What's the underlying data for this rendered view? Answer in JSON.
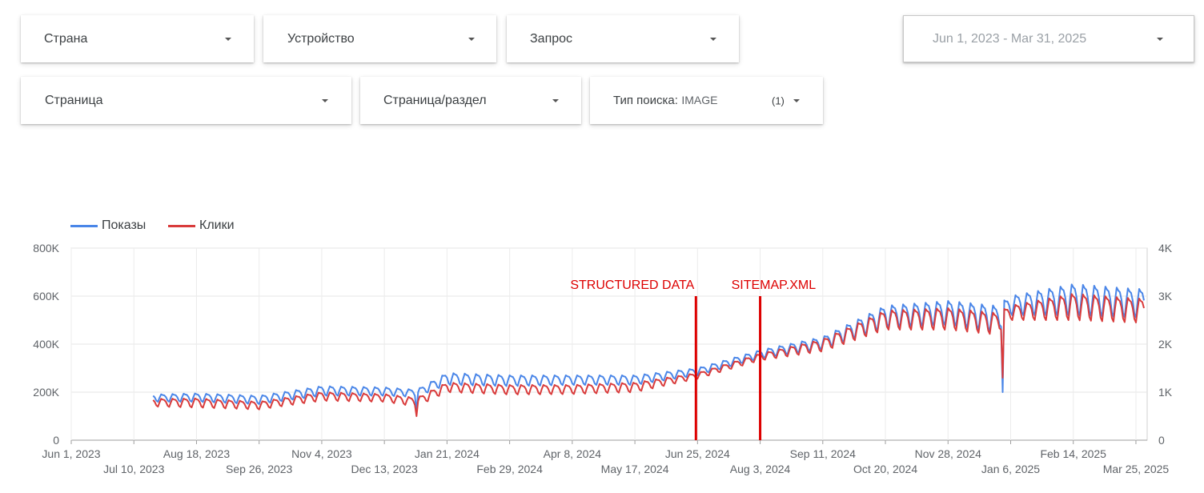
{
  "filters": {
    "country": {
      "label": "Страна"
    },
    "device": {
      "label": "Устройство"
    },
    "query": {
      "label": "Запрос"
    },
    "date_range": {
      "label": "Jun 1, 2023 - Mar 31, 2025"
    },
    "page": {
      "label": "Страница"
    },
    "page_section": {
      "label": "Страница/раздел"
    },
    "search_type": {
      "label": "Тип поиска:",
      "value": "IMAGE",
      "count": "(1)"
    }
  },
  "chart_data": {
    "type": "line",
    "series": [
      {
        "name": "Показы",
        "color": "#4a86e8",
        "axis": "left"
      },
      {
        "name": "Клики",
        "color": "#d93b3b",
        "axis": "right"
      }
    ],
    "x_start": "Jul 22, 2023",
    "x_end": "Mar 30, 2025",
    "weekly_points": [
      {
        "week_of": "Jul 22, 2023",
        "impressions": [
          190000,
          160000
        ],
        "clicks": [
          860,
          700
        ]
      },
      {
        "week_of": "Aug 18, 2023",
        "impressions": [
          195000,
          160000
        ],
        "clicks": [
          870,
          680
        ]
      },
      {
        "week_of": "Sep 26, 2023",
        "impressions": [
          185000,
          150000
        ],
        "clicks": [
          800,
          640
        ]
      },
      {
        "week_of": "Nov 4, 2023",
        "impressions": [
          225000,
          185000
        ],
        "clicks": [
          1000,
          820
        ]
      },
      {
        "week_of": "Dec 13, 2023",
        "impressions": [
          220000,
          185000
        ],
        "clicks": [
          960,
          800
        ]
      },
      {
        "week_of": "Jan 2, 2024",
        "impressions": [
          210000,
          180000
        ],
        "clicks": [
          880,
          700
        ]
      },
      {
        "week_of": "Jan 21, 2024",
        "impressions": [
          280000,
          230000
        ],
        "clicks": [
          1200,
          1000
        ]
      },
      {
        "week_of": "Feb 29, 2024",
        "impressions": [
          270000,
          225000
        ],
        "clicks": [
          1150,
          950
        ]
      },
      {
        "week_of": "Apr 8, 2024",
        "impressions": [
          270000,
          230000
        ],
        "clicks": [
          1150,
          960
        ]
      },
      {
        "week_of": "May 17, 2024",
        "impressions": [
          270000,
          230000
        ],
        "clicks": [
          1200,
          1000
        ]
      },
      {
        "week_of": "Jun 25, 2024",
        "impressions": [
          300000,
          270000
        ],
        "clicks": [
          1400,
          1280
        ]
      },
      {
        "week_of": "Aug 3, 2024",
        "impressions": [
          375000,
          340000
        ],
        "clicks": [
          1800,
          1660
        ]
      },
      {
        "week_of": "Sep 11, 2024",
        "impressions": [
          430000,
          380000
        ],
        "clicks": [
          2100,
          1850
        ]
      },
      {
        "week_of": "Oct 20, 2024",
        "impressions": [
          560000,
          470000
        ],
        "clicks": [
          2700,
          2300
        ]
      },
      {
        "week_of": "Nov 28, 2024",
        "impressions": [
          580000,
          480000
        ],
        "clicks": [
          2750,
          2300
        ]
      },
      {
        "week_of": "Dec 28, 2024",
        "impressions": [
          560000,
          450000
        ],
        "clicks": [
          2650,
          2200
        ]
      },
      {
        "week_of": "Jan 6, 2025",
        "impressions": [
          600000,
          520000
        ],
        "clicks": [
          2800,
          2500
        ]
      },
      {
        "week_of": "Feb 14, 2025",
        "impressions": [
          650000,
          520000
        ],
        "clicks": [
          3050,
          2500
        ]
      },
      {
        "week_of": "Mar 25, 2025",
        "impressions": [
          630000,
          510000
        ],
        "clicks": [
          2950,
          2450
        ]
      }
    ],
    "dips": [
      {
        "date": "Jan 2, 2024",
        "impressions": 120000,
        "clicks": 500
      },
      {
        "date": "Jan 1, 2025",
        "impressions": 200000,
        "clicks": 1300
      }
    ],
    "left_axis": {
      "min": 0,
      "max": 800000,
      "ticks": [
        "0",
        "200K",
        "400K",
        "600K",
        "800K"
      ]
    },
    "right_axis": {
      "min": 0,
      "max": 4000,
      "ticks": [
        "0",
        "1K",
        "2K",
        "3K",
        "4K"
      ]
    },
    "x_axis": {
      "start": "Jun 1, 2023",
      "end": "Apr 1, 2025",
      "labels_upper": [
        "Jun 1, 2023",
        "Aug 18, 2023",
        "Nov 4, 2023",
        "Jan 21, 2024",
        "Apr 8, 2024",
        "Jun 25, 2024",
        "Sep 11, 2024",
        "Nov 28, 2024",
        "Feb 14, 2025"
      ],
      "labels_lower": [
        "Jul 10, 2023",
        "Sep 26, 2023",
        "Dec 13, 2023",
        "Feb 29, 2024",
        "May 17, 2024",
        "Aug 3, 2024",
        "Oct 20, 2024",
        "Jan 6, 2025",
        "Mar 25, 2025"
      ]
    },
    "annotations": [
      {
        "label": "STRUCTURED DATA",
        "date": "Jun 24, 2024",
        "color": "#dd0000"
      },
      {
        "label": "SITEMAP.XML",
        "date": "Aug 3, 2024",
        "color": "#dd0000"
      }
    ],
    "grid": true,
    "legend_position": "top-left"
  }
}
